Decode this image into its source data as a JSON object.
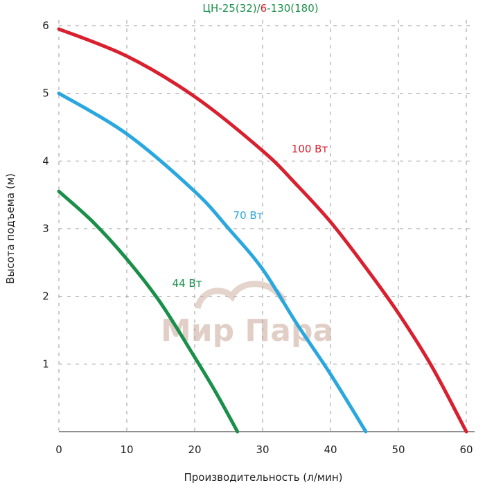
{
  "chart_data": {
    "type": "line",
    "title_parts": [
      {
        "text": "ЦН-25(32)/",
        "color": "#1a8f4a"
      },
      {
        "text": "6",
        "color": "#d8202f"
      },
      {
        "text": "-130(180)",
        "color": "#1a8f4a"
      }
    ],
    "xlabel": "Производительность (л/мин)",
    "ylabel": "Высота подъема (м)",
    "xlim": [
      0,
      60
    ],
    "ylim": [
      0,
      6
    ],
    "xticks": [
      "0",
      "10",
      "20",
      "30",
      "40",
      "50",
      "60"
    ],
    "yticks": [
      "1",
      "2",
      "3",
      "4",
      "5",
      "6"
    ],
    "grid": true,
    "series": [
      {
        "name": "100 Вт",
        "color": "#d8202f",
        "x": [
          0,
          10,
          20,
          30,
          35,
          40,
          45,
          50,
          55,
          60
        ],
        "y": [
          5.95,
          5.55,
          4.95,
          4.15,
          3.65,
          3.1,
          2.45,
          1.75,
          0.95,
          0
        ]
      },
      {
        "name": "70 Вт",
        "color": "#2aa7df",
        "x": [
          0,
          10,
          20,
          25,
          30,
          35,
          40,
          45.2
        ],
        "y": [
          5.0,
          4.4,
          3.55,
          3.0,
          2.4,
          1.6,
          0.85,
          0
        ]
      },
      {
        "name": "44 Вт",
        "color": "#1a8f4a",
        "x": [
          0,
          5,
          10,
          15,
          20,
          23,
          26.3
        ],
        "y": [
          3.55,
          3.1,
          2.55,
          1.9,
          1.1,
          0.6,
          0
        ]
      }
    ],
    "watermark": "Мир Пара"
  }
}
